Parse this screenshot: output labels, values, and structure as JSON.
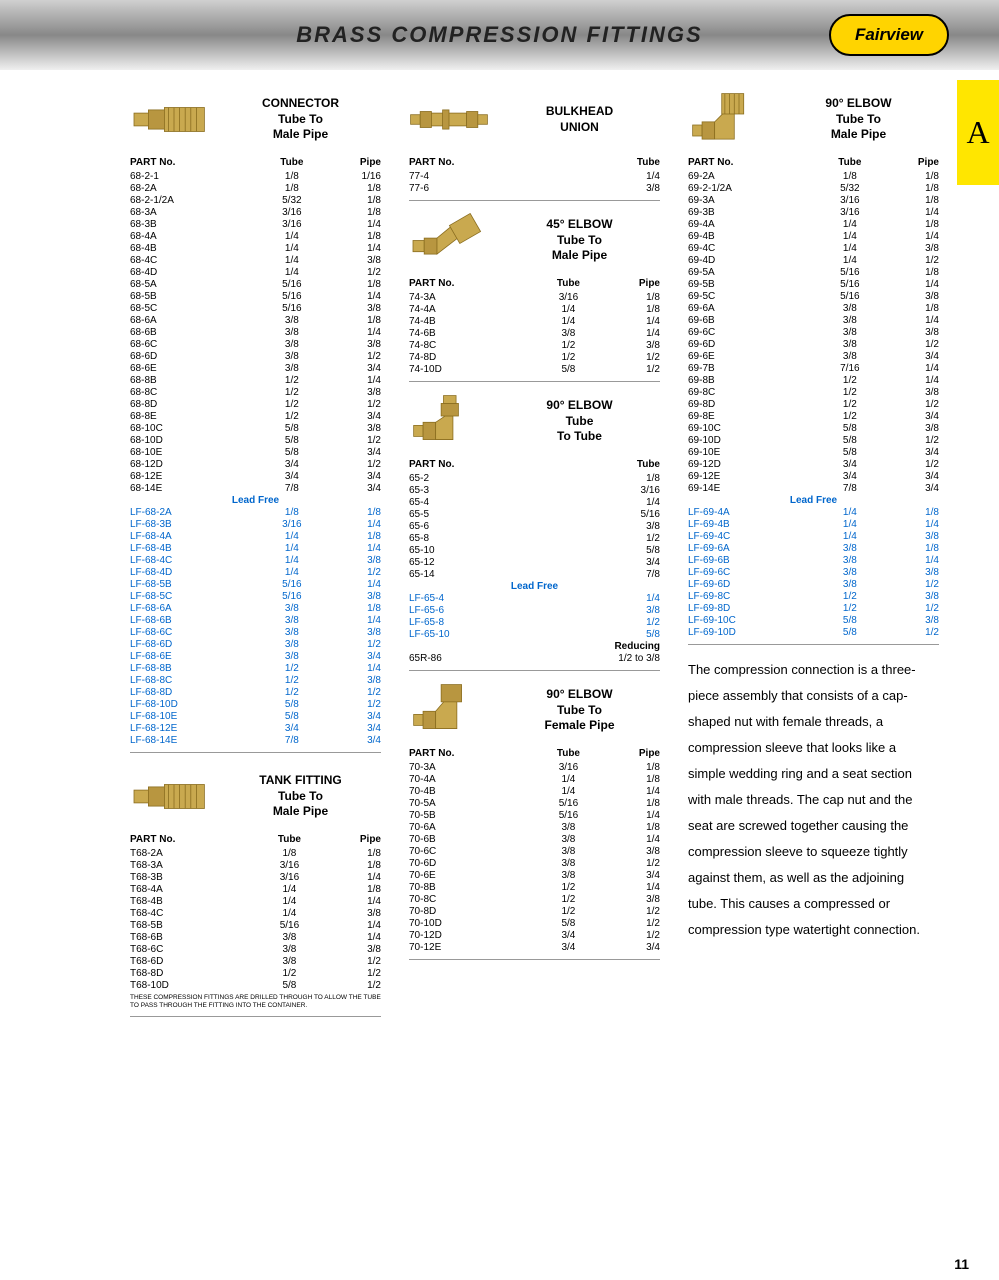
{
  "header": {
    "title": "BRASS COMPRESSION FITTINGS",
    "logo": "Fairview"
  },
  "tab": "A",
  "page_num": "11",
  "description": "The compression connection is a three-piece assembly that consists of a cap-shaped nut with female threads, a compression sleeve that looks like a simple wedding ring and a seat section with male threads. The cap nut and the seat are screwed together causing the compression sleeve to squeeze tightly against them, as well as the adjoining tube. This causes a compressed or compression type watertight connection.",
  "sections": {
    "connector": {
      "title": "CONNECTOR\nTube To\nMale Pipe",
      "cols": [
        "PART No.",
        "Tube",
        "Pipe"
      ],
      "rows": [
        [
          "68-2-1",
          "1/8",
          "1/16"
        ],
        [
          "68-2A",
          "1/8",
          "1/8"
        ],
        [
          "68-2-1/2A",
          "5/32",
          "1/8"
        ],
        [
          "68-3A",
          "3/16",
          "1/8"
        ],
        [
          "68-3B",
          "3/16",
          "1/4"
        ],
        [
          "68-4A",
          "1/4",
          "1/8"
        ],
        [
          "68-4B",
          "1/4",
          "1/4"
        ],
        [
          "68-4C",
          "1/4",
          "3/8"
        ],
        [
          "68-4D",
          "1/4",
          "1/2"
        ],
        [
          "68-5A",
          "5/16",
          "1/8"
        ],
        [
          "68-5B",
          "5/16",
          "1/4"
        ],
        [
          "68-5C",
          "5/16",
          "3/8"
        ],
        [
          "68-6A",
          "3/8",
          "1/8"
        ],
        [
          "68-6B",
          "3/8",
          "1/4"
        ],
        [
          "68-6C",
          "3/8",
          "3/8"
        ],
        [
          "68-6D",
          "3/8",
          "1/2"
        ],
        [
          "68-6E",
          "3/8",
          "3/4"
        ],
        [
          "68-8B",
          "1/2",
          "1/4"
        ],
        [
          "68-8C",
          "1/2",
          "3/8"
        ],
        [
          "68-8D",
          "1/2",
          "1/2"
        ],
        [
          "68-8E",
          "1/2",
          "3/4"
        ],
        [
          "68-10C",
          "5/8",
          "3/8"
        ],
        [
          "68-10D",
          "5/8",
          "1/2"
        ],
        [
          "68-10E",
          "5/8",
          "3/4"
        ],
        [
          "68-12D",
          "3/4",
          "1/2"
        ],
        [
          "68-12E",
          "3/4",
          "3/4"
        ],
        [
          "68-14E",
          "7/8",
          "3/4"
        ]
      ],
      "leadfree_rows": [
        [
          "LF-68-2A",
          "1/8",
          "1/8"
        ],
        [
          "LF-68-3B",
          "3/16",
          "1/4"
        ],
        [
          "LF-68-4A",
          "1/4",
          "1/8"
        ],
        [
          "LF-68-4B",
          "1/4",
          "1/4"
        ],
        [
          "LF-68-4C",
          "1/4",
          "3/8"
        ],
        [
          "LF-68-4D",
          "1/4",
          "1/2"
        ],
        [
          "LF-68-5B",
          "5/16",
          "1/4"
        ],
        [
          "LF-68-5C",
          "5/16",
          "3/8"
        ],
        [
          "LF-68-6A",
          "3/8",
          "1/8"
        ],
        [
          "LF-68-6B",
          "3/8",
          "1/4"
        ],
        [
          "LF-68-6C",
          "3/8",
          "3/8"
        ],
        [
          "LF-68-6D",
          "3/8",
          "1/2"
        ],
        [
          "LF-68-6E",
          "3/8",
          "3/4"
        ],
        [
          "LF-68-8B",
          "1/2",
          "1/4"
        ],
        [
          "LF-68-8C",
          "1/2",
          "3/8"
        ],
        [
          "LF-68-8D",
          "1/2",
          "1/2"
        ],
        [
          "LF-68-10D",
          "5/8",
          "1/2"
        ],
        [
          "LF-68-10E",
          "5/8",
          "3/4"
        ],
        [
          "LF-68-12E",
          "3/4",
          "3/4"
        ],
        [
          "LF-68-14E",
          "7/8",
          "3/4"
        ]
      ]
    },
    "tank": {
      "title": "TANK FITTING\nTube To\nMale Pipe",
      "cols": [
        "PART No.",
        "Tube",
        "Pipe"
      ],
      "rows": [
        [
          "T68-2A",
          "1/8",
          "1/8"
        ],
        [
          "T68-3A",
          "3/16",
          "1/8"
        ],
        [
          "T68-3B",
          "3/16",
          "1/4"
        ],
        [
          "T68-4A",
          "1/4",
          "1/8"
        ],
        [
          "T68-4B",
          "1/4",
          "1/4"
        ],
        [
          "T68-4C",
          "1/4",
          "3/8"
        ],
        [
          "T68-5B",
          "5/16",
          "1/4"
        ],
        [
          "T68-6B",
          "3/8",
          "1/4"
        ],
        [
          "T68-6C",
          "3/8",
          "3/8"
        ],
        [
          "T68-6D",
          "3/8",
          "1/2"
        ],
        [
          "T68-8D",
          "1/2",
          "1/2"
        ],
        [
          "T68-10D",
          "5/8",
          "1/2"
        ]
      ],
      "note": "THESE COMPRESSION FITTINGS ARE DRILLED THROUGH TO ALLOW THE TUBE TO PASS THROUGH THE FITTING INTO THE CONTAINER."
    },
    "bulkhead": {
      "title": "BULKHEAD\nUNION",
      "cols": [
        "PART No.",
        "Tube"
      ],
      "rows": [
        [
          "77-4",
          "1/4"
        ],
        [
          "77-6",
          "3/8"
        ]
      ]
    },
    "elbow45": {
      "title": "45° ELBOW\nTube To\nMale Pipe",
      "cols": [
        "PART No.",
        "Tube",
        "Pipe"
      ],
      "rows": [
        [
          "74-3A",
          "3/16",
          "1/8"
        ],
        [
          "74-4A",
          "1/4",
          "1/8"
        ],
        [
          "74-4B",
          "1/4",
          "1/4"
        ],
        [
          "74-6B",
          "3/8",
          "1/4"
        ],
        [
          "74-8C",
          "1/2",
          "3/8"
        ],
        [
          "74-8D",
          "1/2",
          "1/2"
        ],
        [
          "74-10D",
          "5/8",
          "1/2"
        ]
      ]
    },
    "elbow90tube": {
      "title": "90° ELBOW\nTube\nTo Tube",
      "cols": [
        "PART No.",
        "Tube"
      ],
      "rows": [
        [
          "65-2",
          "1/8"
        ],
        [
          "65-3",
          "3/16"
        ],
        [
          "65-4",
          "1/4"
        ],
        [
          "65-5",
          "5/16"
        ],
        [
          "65-6",
          "3/8"
        ],
        [
          "65-8",
          "1/2"
        ],
        [
          "65-10",
          "5/8"
        ],
        [
          "65-12",
          "3/4"
        ],
        [
          "65-14",
          "7/8"
        ]
      ],
      "leadfree_rows": [
        [
          "LF-65-4",
          "1/4"
        ],
        [
          "LF-65-6",
          "3/8"
        ],
        [
          "LF-65-8",
          "1/2"
        ],
        [
          "LF-65-10",
          "5/8"
        ]
      ],
      "reducing_label": "Reducing",
      "reducing_rows": [
        [
          "65R-86",
          "1/2 to 3/8"
        ]
      ]
    },
    "elbow90female": {
      "title": "90° ELBOW\nTube To\nFemale Pipe",
      "cols": [
        "PART No.",
        "Tube",
        "Pipe"
      ],
      "rows": [
        [
          "70-3A",
          "3/16",
          "1/8"
        ],
        [
          "70-4A",
          "1/4",
          "1/8"
        ],
        [
          "70-4B",
          "1/4",
          "1/4"
        ],
        [
          "70-5A",
          "5/16",
          "1/8"
        ],
        [
          "70-5B",
          "5/16",
          "1/4"
        ],
        [
          "70-6A",
          "3/8",
          "1/8"
        ],
        [
          "70-6B",
          "3/8",
          "1/4"
        ],
        [
          "70-6C",
          "3/8",
          "3/8"
        ],
        [
          "70-6D",
          "3/8",
          "1/2"
        ],
        [
          "70-6E",
          "3/8",
          "3/4"
        ],
        [
          "70-8B",
          "1/2",
          "1/4"
        ],
        [
          "70-8C",
          "1/2",
          "3/8"
        ],
        [
          "70-8D",
          "1/2",
          "1/2"
        ],
        [
          "70-10D",
          "5/8",
          "1/2"
        ],
        [
          "70-12D",
          "3/4",
          "1/2"
        ],
        [
          "70-12E",
          "3/4",
          "3/4"
        ]
      ]
    },
    "elbow90male": {
      "title": "90° ELBOW\nTube To\nMale Pipe",
      "cols": [
        "PART No.",
        "Tube",
        "Pipe"
      ],
      "rows": [
        [
          "69-2A",
          "1/8",
          "1/8"
        ],
        [
          "69-2-1/2A",
          "5/32",
          "1/8"
        ],
        [
          "69-3A",
          "3/16",
          "1/8"
        ],
        [
          "69-3B",
          "3/16",
          "1/4"
        ],
        [
          "69-4A",
          "1/4",
          "1/8"
        ],
        [
          "69-4B",
          "1/4",
          "1/4"
        ],
        [
          "69-4C",
          "1/4",
          "3/8"
        ],
        [
          "69-4D",
          "1/4",
          "1/2"
        ],
        [
          "69-5A",
          "5/16",
          "1/8"
        ],
        [
          "69-5B",
          "5/16",
          "1/4"
        ],
        [
          "69-5C",
          "5/16",
          "3/8"
        ],
        [
          "69-6A",
          "3/8",
          "1/8"
        ],
        [
          "69-6B",
          "3/8",
          "1/4"
        ],
        [
          "69-6C",
          "3/8",
          "3/8"
        ],
        [
          "69-6D",
          "3/8",
          "1/2"
        ],
        [
          "69-6E",
          "3/8",
          "3/4"
        ],
        [
          "69-7B",
          "7/16",
          "1/4"
        ],
        [
          "69-8B",
          "1/2",
          "1/4"
        ],
        [
          "69-8C",
          "1/2",
          "3/8"
        ],
        [
          "69-8D",
          "1/2",
          "1/2"
        ],
        [
          "69-8E",
          "1/2",
          "3/4"
        ],
        [
          "69-10C",
          "5/8",
          "3/8"
        ],
        [
          "69-10D",
          "5/8",
          "1/2"
        ],
        [
          "69-10E",
          "5/8",
          "3/4"
        ],
        [
          "69-12D",
          "3/4",
          "1/2"
        ],
        [
          "69-12E",
          "3/4",
          "3/4"
        ],
        [
          "69-14E",
          "7/8",
          "3/4"
        ]
      ],
      "leadfree_rows": [
        [
          "LF-69-4A",
          "1/4",
          "1/8"
        ],
        [
          "LF-69-4B",
          "1/4",
          "1/4"
        ],
        [
          "LF-69-4C",
          "1/4",
          "3/8"
        ],
        [
          "LF-69-6A",
          "3/8",
          "1/8"
        ],
        [
          "LF-69-6B",
          "3/8",
          "1/4"
        ],
        [
          "LF-69-6C",
          "3/8",
          "3/8"
        ],
        [
          "LF-69-6D",
          "3/8",
          "1/2"
        ],
        [
          "LF-69-8C",
          "1/2",
          "3/8"
        ],
        [
          "LF-69-8D",
          "1/2",
          "1/2"
        ],
        [
          "LF-69-10C",
          "5/8",
          "3/8"
        ],
        [
          "LF-69-10D",
          "5/8",
          "1/2"
        ]
      ]
    }
  },
  "labels": {
    "leadfree": "Lead Free"
  },
  "colors": {
    "brass": "#c9a94f",
    "brass_dark": "#8a6d1f",
    "blue": "#0066cc"
  }
}
